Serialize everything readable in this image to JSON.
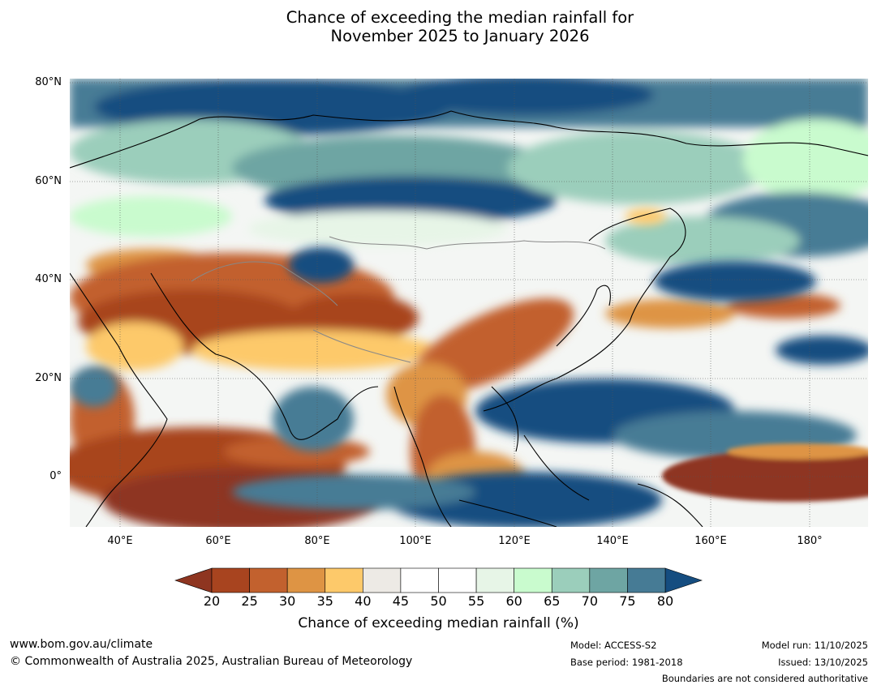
{
  "title": {
    "line1": "Chance of exceeding the median rainfall for",
    "line2": "November 2025 to January 2026"
  },
  "axes": {
    "lat_labels": [
      "80°N",
      "60°N",
      "40°N",
      "20°N",
      "0°"
    ],
    "lon_labels": [
      "40°E",
      "60°E",
      "80°E",
      "100°E",
      "120°E",
      "140°E",
      "160°E",
      "180°"
    ]
  },
  "legend": {
    "ticks": [
      "20",
      "25",
      "30",
      "35",
      "40",
      "45",
      "50",
      "55",
      "60",
      "65",
      "70",
      "75",
      "80"
    ],
    "colors": [
      "#a8441f",
      "#c2612e",
      "#de9444",
      "#fdc96a",
      "#edeae5",
      "#ffffff",
      "#ffffff",
      "#e7f5e7",
      "#c9fbce",
      "#9bcebb",
      "#6ea5a3",
      "#467b95"
    ],
    "low_color": "#8e3520",
    "high_color": "#154d80",
    "label": "Chance of exceeding median rainfall (%)"
  },
  "footer": {
    "website": "www.bom.gov.au/climate",
    "copyright": "© Commonwealth of Australia 2025, Australian Bureau of Meteorology",
    "model": "Model: ACCESS-S2",
    "base_period": "Base period: 1981-2018",
    "model_run": "Model run: 11/10/2025",
    "issued": "Issued: 13/10/2025",
    "disclaimer": "Boundaries are not considered authoritative"
  }
}
